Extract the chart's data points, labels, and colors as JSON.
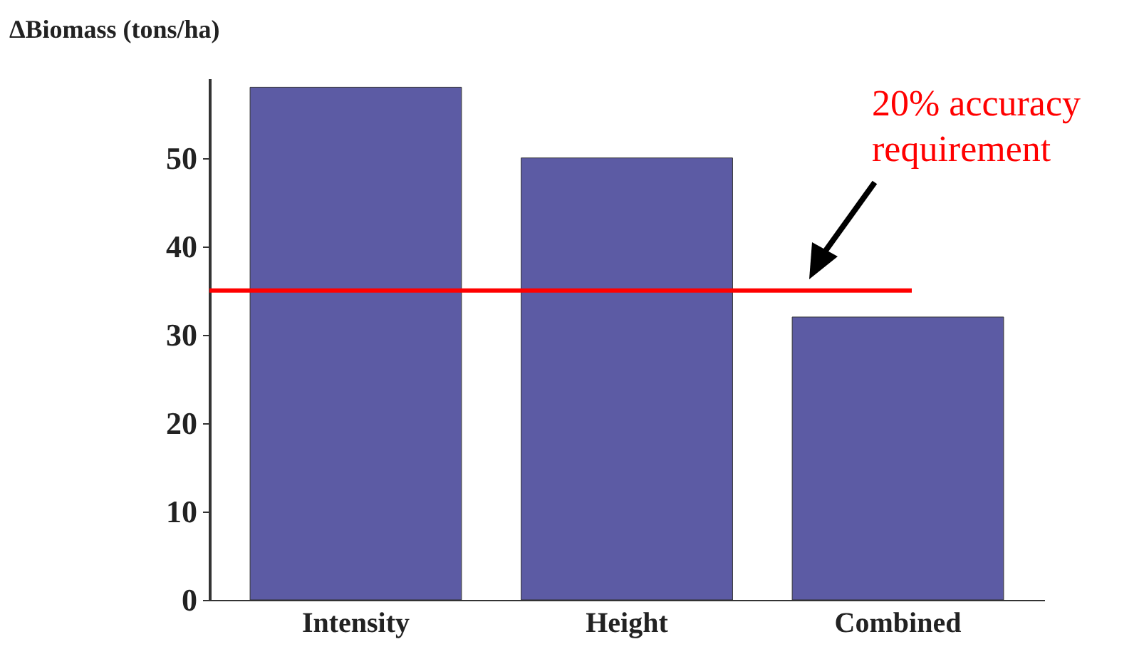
{
  "chart_data": {
    "type": "bar",
    "ylabel": "ΔBiomass (tons/ha)",
    "categories": [
      "Intensity",
      "Height",
      "Combined"
    ],
    "values": [
      58,
      50,
      32
    ],
    "color": "#5c5ba4",
    "ylim": [
      0,
      59
    ],
    "yticks": [
      0,
      10,
      20,
      30,
      40,
      50
    ],
    "grid": false,
    "ref_lines": [
      {
        "axis": "y",
        "value": 35,
        "label": "20% accuracy requirement",
        "color": "#ff0000"
      }
    ]
  }
}
